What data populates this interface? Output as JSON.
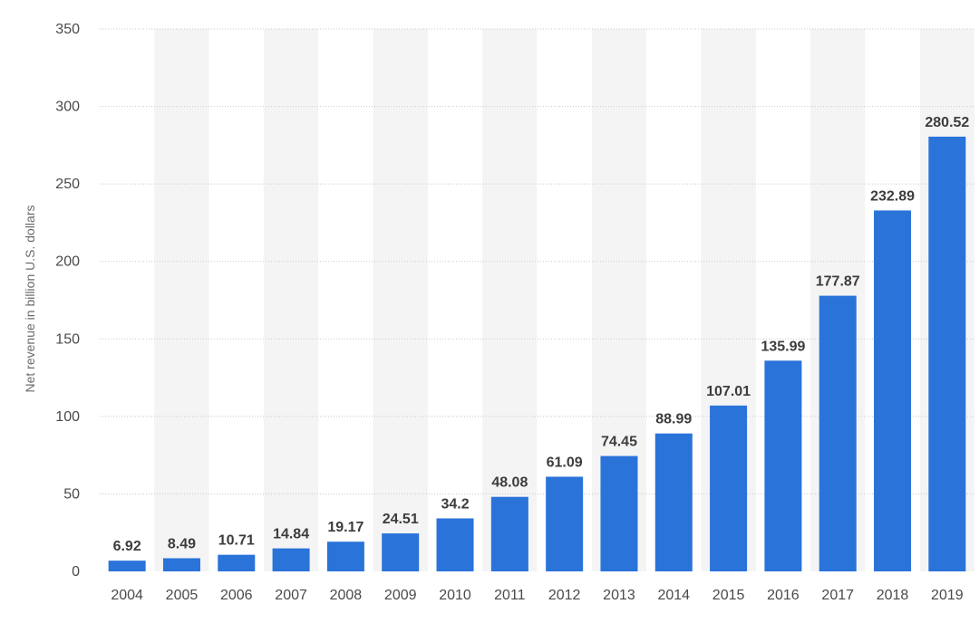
{
  "chart_data": {
    "type": "bar",
    "categories": [
      "2004",
      "2005",
      "2006",
      "2007",
      "2008",
      "2009",
      "2010",
      "2011",
      "2012",
      "2013",
      "2014",
      "2015",
      "2016",
      "2017",
      "2018",
      "2019"
    ],
    "values": [
      6.92,
      8.49,
      10.71,
      14.84,
      19.17,
      24.51,
      34.2,
      48.08,
      61.09,
      74.45,
      88.99,
      107.01,
      135.99,
      177.87,
      232.89,
      280.52
    ],
    "value_labels": [
      "6.92",
      "8.49",
      "10.71",
      "14.84",
      "19.17",
      "24.51",
      "34.2",
      "48.08",
      "61.09",
      "74.45",
      "88.99",
      "107.01",
      "135.99",
      "177.87",
      "232.89",
      "280.52"
    ],
    "title": "",
    "xlabel": "",
    "ylabel": "Net revenue in billion U.S. dollars",
    "ylim": [
      0,
      350
    ],
    "yticks": [
      0,
      50,
      100,
      150,
      200,
      250,
      300,
      350
    ],
    "grid": true,
    "alternating_column_shading": true,
    "colors": {
      "bar": "#2a73d9",
      "band": "#f4f4f4",
      "grid": "#c8c8c8"
    }
  }
}
